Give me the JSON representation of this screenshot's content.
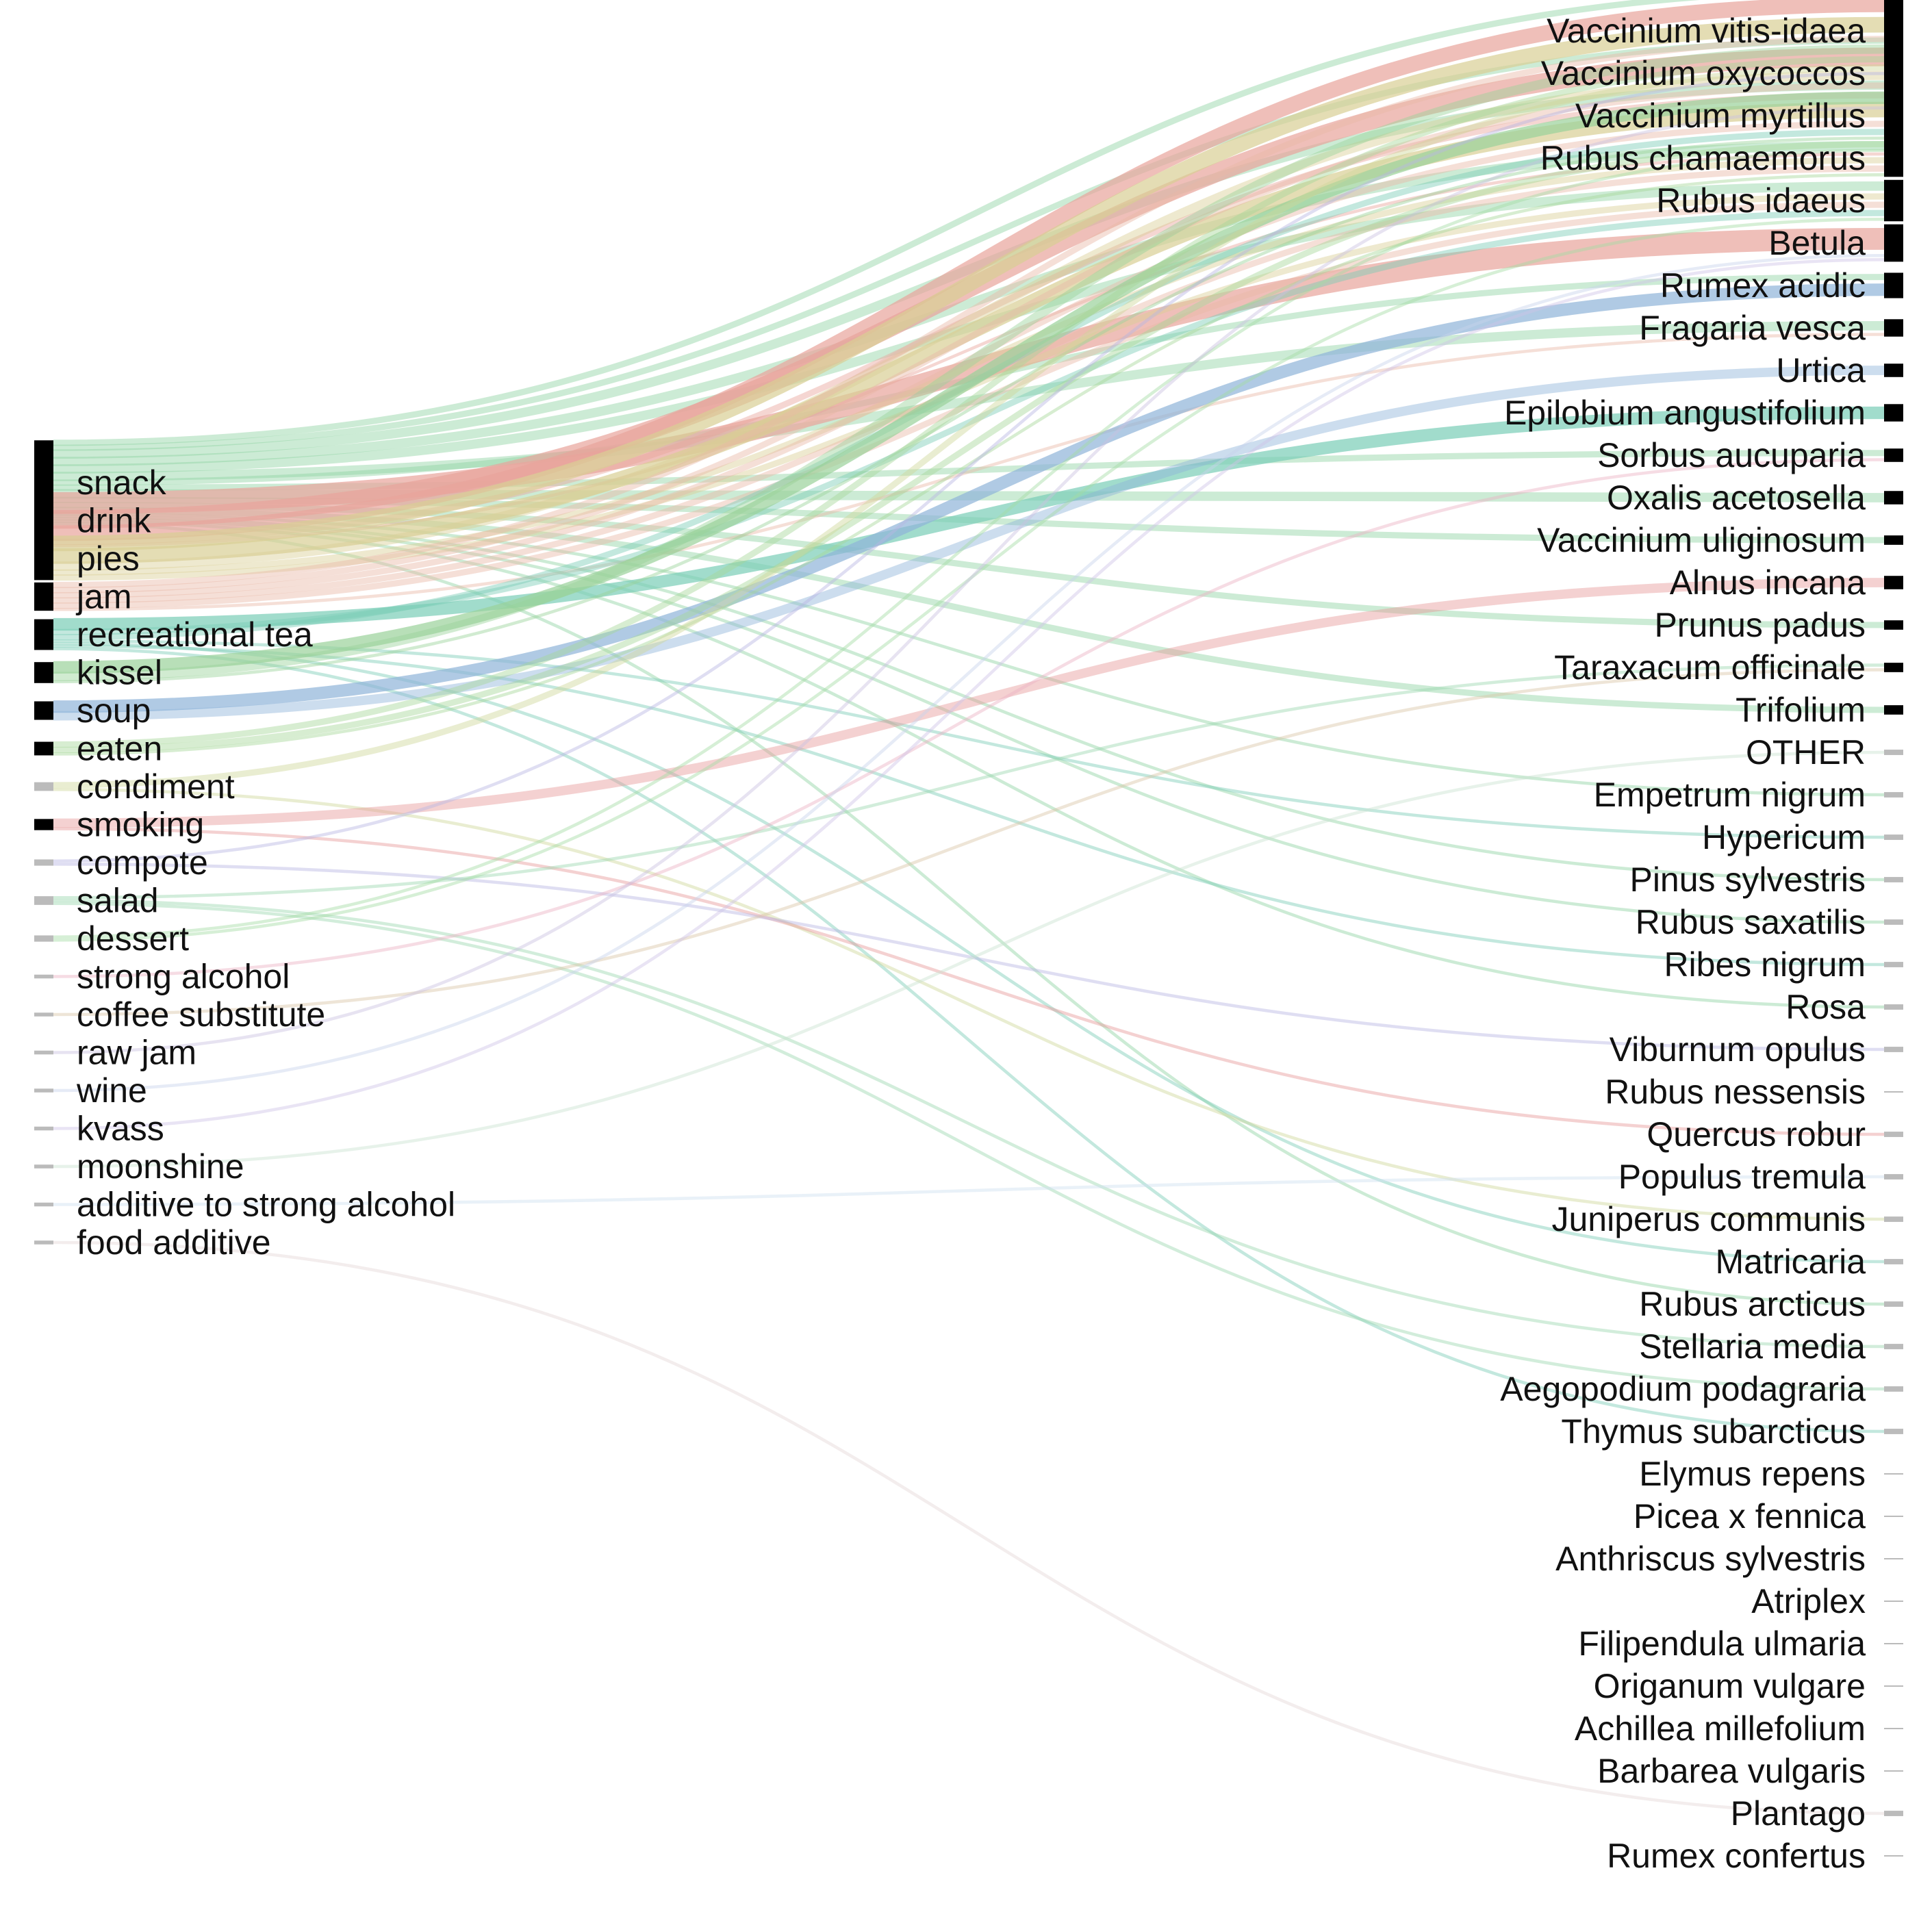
{
  "chart_data": {
    "type": "sankey",
    "left_nodes": [
      "snack",
      "drink",
      "pies",
      "jam",
      "recreational tea",
      "kissel",
      "soup",
      "eaten",
      "condiment",
      "smoking",
      "compote",
      "salad",
      "dessert",
      "strong alcohol",
      "coffee substitute",
      "raw jam",
      "wine",
      "kvass",
      "moonshine",
      "additive to strong alcohol",
      "food additive"
    ],
    "right_nodes": [
      "Vaccinium vitis-idaea",
      "Vaccinium oxycoccos",
      "Vaccinium myrtillus",
      "Rubus chamaemorus",
      "Rubus idaeus",
      "Betula",
      "Rumex acidic",
      "Fragaria vesca",
      "Urtica",
      "Epilobium angustifolium",
      "Sorbus aucuparia",
      "Oxalis acetosella",
      "Vaccinium uliginosum",
      "Alnus incana",
      "Prunus padus",
      "Taraxacum officinale",
      "Trifolium",
      "OTHER",
      "Empetrum nigrum",
      "Hypericum",
      "Pinus sylvestris",
      "Rubus saxatilis",
      "Ribes nigrum",
      "Rosa",
      "Viburnum opulus",
      "Rubus nessensis",
      "Quercus robur",
      "Populus tremula",
      "Juniperus communis",
      "Matricaria",
      "Rubus arcticus",
      "Stellaria media",
      "Aegopodium podagraria",
      "Thymus subarcticus",
      "Elymus repens",
      "Picea x fennica",
      "Anthriscus sylvestris",
      "Atriplex",
      "Filipendula ulmaria",
      "Origanum vulgare",
      "Achillea millefolium",
      "Barbarea vulgaris",
      "Plantago",
      "Rumex confertus"
    ],
    "left_colors": {
      "snack": "#8fd3a2",
      "drink": "#e8a49b",
      "pies": "#d9cf94",
      "jam": "#e9b9a6",
      "recreational tea": "#79cdb6",
      "kissel": "#9ad29a",
      "soup": "#8fb4d9",
      "eaten": "#a6d89a",
      "condiment": "#cfd79a",
      "smoking": "#e79a9a",
      "compote": "#b8b6e3",
      "salad": "#9bd6b0",
      "dessert": "#a5dba5",
      "strong alcohol": "#eab2c4",
      "coffee substitute": "#d9c6a6",
      "raw jam": "#c9c2e0",
      "wine": "#c7d2ea",
      "kvass": "#cfc3e6",
      "moonshine": "#c9e2d0",
      "additive to strong alcohol": "#cfdff0",
      "food additive": "#e5d6d6"
    },
    "links": [
      {
        "source": "snack",
        "target": "Vaccinium vitis-idaea",
        "value": 2
      },
      {
        "source": "snack",
        "target": "Vaccinium oxycoccos",
        "value": 2
      },
      {
        "source": "snack",
        "target": "Vaccinium myrtillus",
        "value": 3
      },
      {
        "source": "snack",
        "target": "Rubus chamaemorus",
        "value": 3
      },
      {
        "source": "snack",
        "target": "Rubus idaeus",
        "value": 3
      },
      {
        "source": "snack",
        "target": "Fragaria vesca",
        "value": 3
      },
      {
        "source": "snack",
        "target": "Rumex acidic",
        "value": 2
      },
      {
        "source": "snack",
        "target": "Sorbus aucuparia",
        "value": 2
      },
      {
        "source": "snack",
        "target": "Oxalis acetosella",
        "value": 3
      },
      {
        "source": "snack",
        "target": "Vaccinium uliginosum",
        "value": 2
      },
      {
        "source": "snack",
        "target": "Prunus padus",
        "value": 2
      },
      {
        "source": "snack",
        "target": "Trifolium",
        "value": 2
      },
      {
        "source": "snack",
        "target": "Empetrum nigrum",
        "value": 1
      },
      {
        "source": "snack",
        "target": "Pinus sylvestris",
        "value": 1
      },
      {
        "source": "snack",
        "target": "Rubus saxatilis",
        "value": 1
      },
      {
        "source": "snack",
        "target": "Rosa",
        "value": 1
      },
      {
        "source": "snack",
        "target": "Rubus arcticus",
        "value": 1
      },
      {
        "source": "drink",
        "target": "Betula",
        "value": 7
      },
      {
        "source": "drink",
        "target": "Vaccinium oxycoccos",
        "value": 6
      },
      {
        "source": "drink",
        "target": "Vaccinium vitis-idaea",
        "value": 5
      },
      {
        "source": "drink",
        "target": "Vaccinium myrtillus",
        "value": 2
      },
      {
        "source": "drink",
        "target": "Rubus chamaemorus",
        "value": 1
      },
      {
        "source": "pies",
        "target": "Vaccinium vitis-idaea",
        "value": 5
      },
      {
        "source": "pies",
        "target": "Vaccinium myrtillus",
        "value": 5
      },
      {
        "source": "pies",
        "target": "Vaccinium oxycoccos",
        "value": 3
      },
      {
        "source": "pies",
        "target": "Rubus chamaemorus",
        "value": 2
      },
      {
        "source": "pies",
        "target": "Rubus idaeus",
        "value": 2
      },
      {
        "source": "jam",
        "target": "Vaccinium vitis-idaea",
        "value": 2
      },
      {
        "source": "jam",
        "target": "Vaccinium oxycoccos",
        "value": 2
      },
      {
        "source": "jam",
        "target": "Vaccinium myrtillus",
        "value": 2
      },
      {
        "source": "jam",
        "target": "Rubus chamaemorus",
        "value": 2
      },
      {
        "source": "jam",
        "target": "Rubus idaeus",
        "value": 2
      },
      {
        "source": "jam",
        "target": "Fragaria vesca",
        "value": 1
      },
      {
        "source": "recreational tea",
        "target": "Epilobium angustifolium",
        "value": 4
      },
      {
        "source": "recreational tea",
        "target": "Rubus idaeus",
        "value": 2
      },
      {
        "source": "recreational tea",
        "target": "Vaccinium myrtillus",
        "value": 2
      },
      {
        "source": "recreational tea",
        "target": "Hypericum",
        "value": 1
      },
      {
        "source": "recreational tea",
        "target": "Matricaria",
        "value": 1
      },
      {
        "source": "recreational tea",
        "target": "Ribes nigrum",
        "value": 1
      },
      {
        "source": "recreational tea",
        "target": "Thymus subarcticus",
        "value": 1
      },
      {
        "source": "kissel",
        "target": "Vaccinium oxycoccos",
        "value": 4
      },
      {
        "source": "kissel",
        "target": "Vaccinium vitis-idaea",
        "value": 3
      },
      {
        "source": "kissel",
        "target": "Vaccinium myrtillus",
        "value": 1
      },
      {
        "source": "soup",
        "target": "Rumex acidic",
        "value": 4
      },
      {
        "source": "soup",
        "target": "Urtica",
        "value": 3
      },
      {
        "source": "eaten",
        "target": "Vaccinium vitis-idaea",
        "value": 2
      },
      {
        "source": "eaten",
        "target": "Vaccinium myrtillus",
        "value": 2
      },
      {
        "source": "eaten",
        "target": "Rubus chamaemorus",
        "value": 1
      },
      {
        "source": "condiment",
        "target": "Vaccinium vitis-idaea",
        "value": 2
      },
      {
        "source": "condiment",
        "target": "Juniperus communis",
        "value": 1
      },
      {
        "source": "smoking",
        "target": "Alnus incana",
        "value": 3
      },
      {
        "source": "smoking",
        "target": "Quercus robur",
        "value": 1
      },
      {
        "source": "compote",
        "target": "Vaccinium vitis-idaea",
        "value": 1
      },
      {
        "source": "compote",
        "target": "Viburnum opulus",
        "value": 1
      },
      {
        "source": "salad",
        "target": "Taraxacum officinale",
        "value": 1
      },
      {
        "source": "salad",
        "target": "Stellaria media",
        "value": 1
      },
      {
        "source": "salad",
        "target": "Aegopodium podagraria",
        "value": 1
      },
      {
        "source": "dessert",
        "target": "Vaccinium myrtillus",
        "value": 1
      },
      {
        "source": "dessert",
        "target": "Rubus idaeus",
        "value": 1
      },
      {
        "source": "strong alcohol",
        "target": "Sorbus aucuparia",
        "value": 1
      },
      {
        "source": "coffee substitute",
        "target": "Taraxacum officinale",
        "value": 1
      },
      {
        "source": "raw jam",
        "target": "Vaccinium oxycoccos",
        "value": 1
      },
      {
        "source": "wine",
        "target": "Betula",
        "value": 1
      },
      {
        "source": "kvass",
        "target": "Betula",
        "value": 1
      },
      {
        "source": "moonshine",
        "target": "OTHER",
        "value": 1
      },
      {
        "source": "additive to strong alcohol",
        "target": "Populus tremula",
        "value": 1
      },
      {
        "source": "food additive",
        "target": "Plantago",
        "value": 1
      }
    ]
  }
}
